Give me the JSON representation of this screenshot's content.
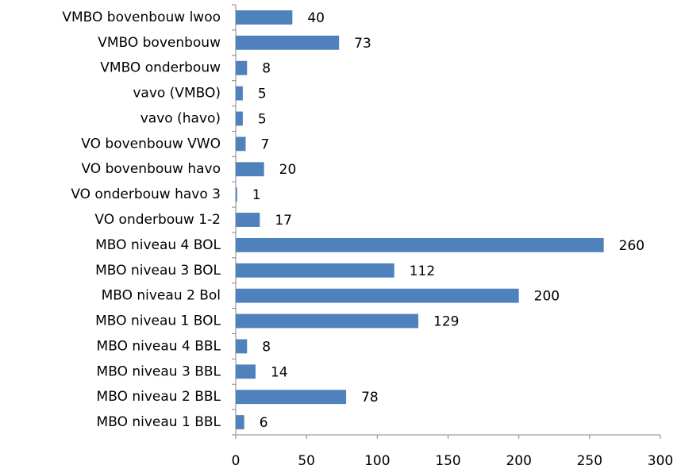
{
  "chart_data": {
    "type": "bar",
    "orientation": "horizontal",
    "categories": [
      "VMBO bovenbouw lwoo",
      "VMBO bovenbouw",
      "VMBO onderbouw",
      "vavo (VMBO)",
      "vavo (havo)",
      "VO bovenbouw VWO",
      "VO bovenbouw havo",
      "VO onderbouw havo 3",
      "VO onderbouw 1-2",
      "MBO niveau 4 BOL",
      "MBO niveau 3 BOL",
      "MBO niveau 2 Bol",
      "MBO niveau 1 BOL",
      "MBO niveau 4 BBL",
      "MBO niveau 3 BBL",
      "MBO niveau 2 BBL",
      "MBO niveau 1 BBL"
    ],
    "values": [
      40,
      73,
      8,
      5,
      5,
      7,
      20,
      1,
      17,
      260,
      112,
      200,
      129,
      8,
      14,
      78,
      6
    ],
    "color": "#4f81bd",
    "xlim": [
      0,
      300
    ],
    "xticks": [
      0,
      50,
      100,
      150,
      200,
      250,
      300
    ],
    "grid": false
  }
}
